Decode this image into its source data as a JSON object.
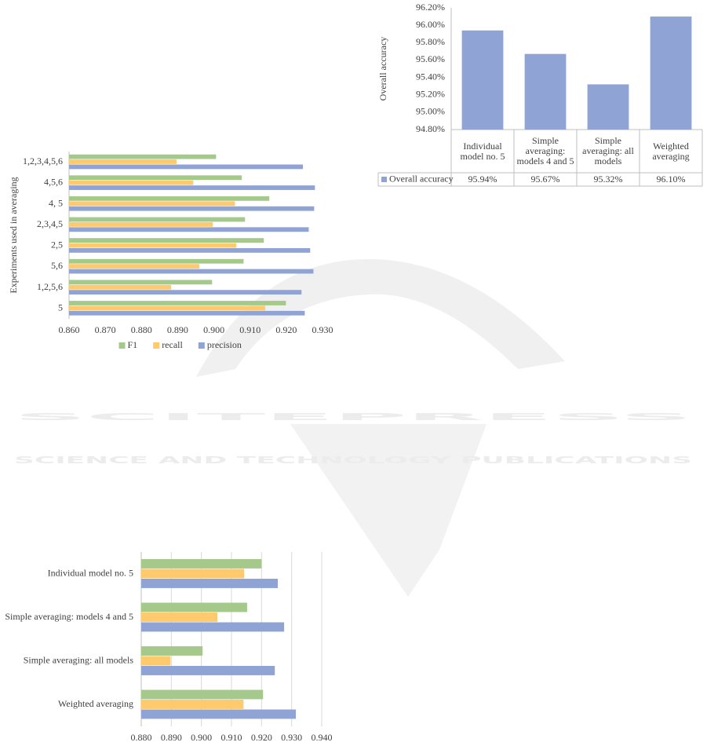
{
  "watermark": {
    "title": "SCITEPRESS",
    "subtitle": "SCIENCE AND TECHNOLOGY PUBLICATIONS"
  },
  "chart_data": [
    {
      "type": "hbar",
      "y_label": "Experiments used in averaging",
      "categories": [
        "1,2,3,4,5,6",
        "4,5,6",
        "4, 5",
        "2,3,4,5",
        "2,5",
        "5,6",
        "1,2,5,6",
        "5"
      ],
      "series": [
        {
          "name": "F1",
          "color": "#a5c98b",
          "values": [
            0.9006,
            0.9077,
            0.9153,
            0.9086,
            0.9138,
            0.9082,
            0.8995,
            0.9199
          ]
        },
        {
          "name": "recall",
          "color": "#ffca6e",
          "values": [
            0.8897,
            0.8943,
            0.9058,
            0.8997,
            0.9062,
            0.896,
            0.8882,
            0.9142
          ]
        },
        {
          "name": "precision",
          "color": "#8fa3d4",
          "values": [
            0.9246,
            0.9279,
            0.9277,
            0.9262,
            0.9266,
            0.9275,
            0.9242,
            0.9251
          ]
        }
      ],
      "xlim": [
        0.86,
        0.93
      ],
      "xticks": [
        {
          "value": 0.86,
          "label": "0.860"
        },
        {
          "value": 0.87,
          "label": "0.870"
        },
        {
          "value": 0.88,
          "label": "0.880"
        },
        {
          "value": 0.89,
          "label": "0.890"
        },
        {
          "value": 0.9,
          "label": "0.900"
        },
        {
          "value": 0.91,
          "label": "0.910"
        },
        {
          "value": 0.92,
          "label": "0.920"
        },
        {
          "value": 0.93,
          "label": "0.930"
        }
      ],
      "grid": false,
      "legend": "bottom"
    },
    {
      "type": "bar",
      "y_label": "Overall accuracy",
      "categories": [
        "Individual model no. 5",
        "Simple averaging: models 4 and 5",
        "Simple averaging: all models",
        "Weighted averaging"
      ],
      "series": [
        {
          "name": "Overall accuracy",
          "color": "#8fa3d4",
          "values": [
            95.94,
            95.67,
            95.32,
            96.1
          ],
          "value_labels": [
            "95.94%",
            "95.67%",
            "95.32%",
            "96.10%"
          ]
        }
      ],
      "ylim": [
        94.8,
        96.2
      ],
      "yticks": [
        {
          "value": 94.8,
          "label": "94.80%"
        },
        {
          "value": 95.0,
          "label": "95.00%"
        },
        {
          "value": 95.2,
          "label": "95.20%"
        },
        {
          "value": 95.4,
          "label": "95.40%"
        },
        {
          "value": 95.6,
          "label": "95.60%"
        },
        {
          "value": 95.8,
          "label": "95.80%"
        },
        {
          "value": 96.0,
          "label": "96.00%"
        },
        {
          "value": 96.2,
          "label": "96.20%"
        }
      ],
      "grid": false,
      "data_table": true
    },
    {
      "type": "hbar",
      "categories": [
        "Individual model no. 5",
        "Simple averaging: models 4 and 5",
        "Simple averaging: all models",
        "Weighted averaging"
      ],
      "series": [
        {
          "color": "#a5c98b",
          "values": [
            0.92,
            0.9152,
            0.9004,
            0.9205
          ]
        },
        {
          "color": "#ffca6e",
          "values": [
            0.9142,
            0.9053,
            0.8897,
            0.914
          ]
        },
        {
          "color": "#8fa3d4",
          "values": [
            0.9254,
            0.9275,
            0.9244,
            0.9314
          ]
        }
      ],
      "xlim": [
        0.88,
        0.94
      ],
      "xticks": [
        {
          "value": 0.88,
          "label": "0.880"
        },
        {
          "value": 0.89,
          "label": "0.890"
        },
        {
          "value": 0.9,
          "label": "0.900"
        },
        {
          "value": 0.91,
          "label": "0.910"
        },
        {
          "value": 0.92,
          "label": "0.920"
        },
        {
          "value": 0.93,
          "label": "0.930"
        },
        {
          "value": 0.94,
          "label": "0.940"
        }
      ],
      "grid": true
    }
  ]
}
